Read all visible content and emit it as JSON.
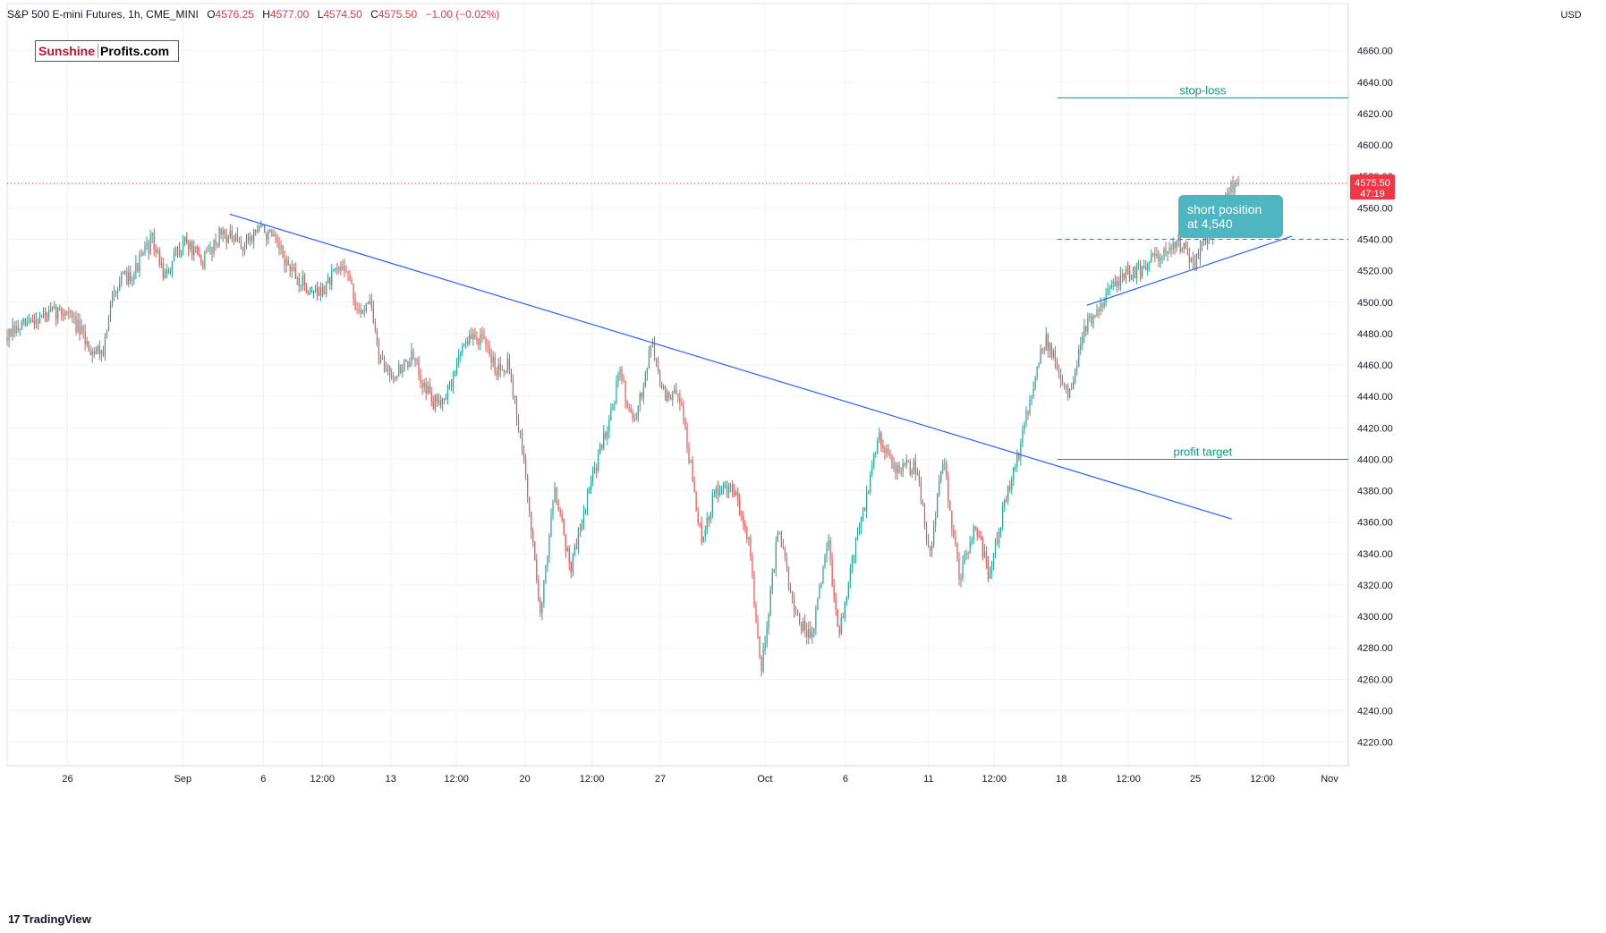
{
  "header": {
    "title": "S&P 500 E-mini Futures, 1h, CME_MINI",
    "open_label": "O",
    "open": "4576.25",
    "high_label": "H",
    "high": "4577.00",
    "low_label": "L",
    "low": "4574.50",
    "close_label": "C",
    "close": "4575.50",
    "change": "−1.00 (−0.02%)"
  },
  "logo": {
    "part1": "Sunshine",
    "part2": "Profits.com"
  },
  "footer": {
    "brand_mark": "17",
    "brand": "TradingView"
  },
  "colors": {
    "up": "#26a69a",
    "down": "#ef5350",
    "trendline": "#2962ff",
    "level": "#089981",
    "price_line": "#f23645",
    "callout": "#4db6c0"
  },
  "chart_data": {
    "type": "candlestick",
    "symbol": "S&P 500 E-mini Futures",
    "interval": "1h",
    "currency": "USD",
    "ylim": [
      4205,
      4690
    ],
    "y_ticks": [
      4220,
      4240,
      4260,
      4280,
      4300,
      4320,
      4340,
      4360,
      4380,
      4400,
      4420,
      4440,
      4460,
      4480,
      4500,
      4520,
      4540,
      4560,
      4580,
      4600,
      4620,
      4640,
      4660
    ],
    "x_ticks": [
      {
        "label": "26",
        "pos": 0.045
      },
      {
        "label": "Sep",
        "pos": 0.131
      },
      {
        "label": "6",
        "pos": 0.191
      },
      {
        "label": "12:00",
        "pos": 0.235
      },
      {
        "label": "13",
        "pos": 0.286
      },
      {
        "label": "12:00",
        "pos": 0.335
      },
      {
        "label": "20",
        "pos": 0.386
      },
      {
        "label": "12:00",
        "pos": 0.436
      },
      {
        "label": "27",
        "pos": 0.487
      },
      {
        "label": "Oct",
        "pos": 0.565
      },
      {
        "label": "6",
        "pos": 0.625
      },
      {
        "label": "11",
        "pos": 0.687
      },
      {
        "label": "12:00",
        "pos": 0.736
      },
      {
        "label": "18",
        "pos": 0.786
      },
      {
        "label": "12:00",
        "pos": 0.836
      },
      {
        "label": "25",
        "pos": 0.886
      },
      {
        "label": "12:00",
        "pos": 0.936
      },
      {
        "label": "Nov",
        "pos": 0.986
      }
    ],
    "path_anchors": [
      [
        0.0,
        4478
      ],
      [
        0.022,
        4490
      ],
      [
        0.045,
        4495
      ],
      [
        0.062,
        4470
      ],
      [
        0.072,
        4470
      ],
      [
        0.08,
        4510
      ],
      [
        0.095,
        4520
      ],
      [
        0.108,
        4540
      ],
      [
        0.118,
        4515
      ],
      [
        0.132,
        4540
      ],
      [
        0.145,
        4525
      ],
      [
        0.16,
        4545
      ],
      [
        0.175,
        4535
      ],
      [
        0.188,
        4548
      ],
      [
        0.198,
        4540
      ],
      [
        0.215,
        4515
      ],
      [
        0.232,
        4505
      ],
      [
        0.252,
        4525
      ],
      [
        0.262,
        4490
      ],
      [
        0.27,
        4505
      ],
      [
        0.278,
        4460
      ],
      [
        0.29,
        4455
      ],
      [
        0.302,
        4465
      ],
      [
        0.318,
        4435
      ],
      [
        0.33,
        4445
      ],
      [
        0.34,
        4475
      ],
      [
        0.352,
        4478
      ],
      [
        0.365,
        4458
      ],
      [
        0.374,
        4462
      ],
      [
        0.385,
        4400
      ],
      [
        0.398,
        4300
      ],
      [
        0.408,
        4385
      ],
      [
        0.42,
        4330
      ],
      [
        0.432,
        4375
      ],
      [
        0.447,
        4420
      ],
      [
        0.457,
        4455
      ],
      [
        0.468,
        4420
      ],
      [
        0.48,
        4475
      ],
      [
        0.49,
        4440
      ],
      [
        0.502,
        4440
      ],
      [
        0.518,
        4345
      ],
      [
        0.528,
        4380
      ],
      [
        0.542,
        4380
      ],
      [
        0.553,
        4350
      ],
      [
        0.562,
        4265
      ],
      [
        0.575,
        4355
      ],
      [
        0.588,
        4300
      ],
      [
        0.6,
        4285
      ],
      [
        0.612,
        4350
      ],
      [
        0.62,
        4285
      ],
      [
        0.632,
        4345
      ],
      [
        0.642,
        4380
      ],
      [
        0.65,
        4418
      ],
      [
        0.66,
        4395
      ],
      [
        0.678,
        4395
      ],
      [
        0.688,
        4340
      ],
      [
        0.698,
        4400
      ],
      [
        0.71,
        4325
      ],
      [
        0.722,
        4360
      ],
      [
        0.732,
        4325
      ],
      [
        0.742,
        4365
      ],
      [
        0.756,
        4410
      ],
      [
        0.768,
        4460
      ],
      [
        0.775,
        4475
      ],
      [
        0.785,
        4455
      ],
      [
        0.792,
        4440
      ],
      [
        0.802,
        4480
      ],
      [
        0.815,
        4500
      ],
      [
        0.83,
        4515
      ],
      [
        0.845,
        4520
      ],
      [
        0.858,
        4530
      ],
      [
        0.872,
        4540
      ],
      [
        0.88,
        4530
      ],
      [
        0.885,
        4525
      ],
      [
        0.895,
        4540
      ],
      [
        0.905,
        4560
      ],
      [
        0.912,
        4572
      ],
      [
        0.918,
        4575.5
      ]
    ],
    "last_price": 4575.5,
    "last_price_label": "4575.50",
    "countdown": "47:19",
    "annotations": {
      "stop_loss": {
        "label": "stop-loss",
        "price": 4630,
        "x_range": [
          0.783,
          1.0
        ]
      },
      "profit_target": {
        "label": "profit target",
        "price": 4400,
        "x_range": [
          0.783,
          1.0
        ]
      },
      "entry_level": {
        "price": 4540,
        "x_range": [
          0.783,
          1.0
        ]
      },
      "callout": {
        "line1": "short position",
        "line2": "at 4,540"
      },
      "resistance_trendline": {
        "from": [
          0.166,
          4556
        ],
        "to": [
          0.913,
          4362
        ]
      },
      "support_trendline": {
        "from": [
          0.805,
          4498
        ],
        "to": [
          0.958,
          4542
        ]
      }
    }
  }
}
